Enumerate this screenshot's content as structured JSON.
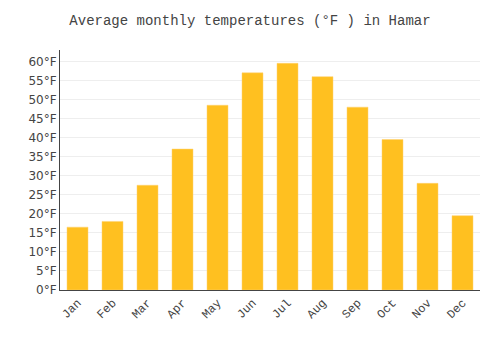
{
  "chart_data": {
    "type": "bar",
    "title": "Average monthly temperatures (°F ) in Hamar",
    "categories": [
      "Jan",
      "Feb",
      "Mar",
      "Apr",
      "May",
      "Jun",
      "Jul",
      "Aug",
      "Sep",
      "Oct",
      "Nov",
      "Dec"
    ],
    "values": [
      16.5,
      18.0,
      27.5,
      37.0,
      48.5,
      57.0,
      59.5,
      56.0,
      48.0,
      39.5,
      28.0,
      19.5
    ],
    "color": "#FFC020",
    "ylim": [
      0,
      63
    ],
    "yticks": [
      {
        "value": 0,
        "label": "0°F"
      },
      {
        "value": 5,
        "label": "5°F"
      },
      {
        "value": 10,
        "label": "10°F"
      },
      {
        "value": 15,
        "label": "15°F"
      },
      {
        "value": 20,
        "label": "20°F"
      },
      {
        "value": 25,
        "label": "25°F"
      },
      {
        "value": 30,
        "label": "30°F"
      },
      {
        "value": 35,
        "label": "35°F"
      },
      {
        "value": 40,
        "label": "40°F"
      },
      {
        "value": 45,
        "label": "45°F"
      },
      {
        "value": 50,
        "label": "50°F"
      },
      {
        "value": 55,
        "label": "55°F"
      },
      {
        "value": 60,
        "label": "60°F"
      }
    ],
    "grid": true
  }
}
